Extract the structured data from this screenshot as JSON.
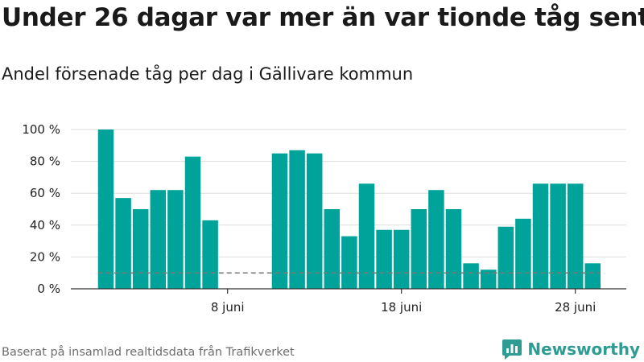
{
  "header": {
    "title": "Under 26 dagar var mer än var tionde tåg sent",
    "subtitle": "Andel försenade tåg per dag i Gällivare kommun"
  },
  "footer": {
    "source": "Baserat på insamlad realtidsdata från Trafikverket",
    "brand": "Newsworthy"
  },
  "colors": {
    "bar": "#00a39a",
    "reference_line": "#777777",
    "grid": "#dddddd",
    "brand": "#2e9c93"
  },
  "chart_data": {
    "type": "bar",
    "title": "",
    "xlabel": "",
    "ylabel": "",
    "x": [
      "2025-06-01",
      "2025-06-02",
      "2025-06-03",
      "2025-06-04",
      "2025-06-05",
      "2025-06-06",
      "2025-06-07",
      "2025-06-08",
      "2025-06-09",
      "2025-06-10",
      "2025-06-11",
      "2025-06-12",
      "2025-06-13",
      "2025-06-14",
      "2025-06-15",
      "2025-06-16",
      "2025-06-17",
      "2025-06-18",
      "2025-06-19",
      "2025-06-20",
      "2025-06-21",
      "2025-06-22",
      "2025-06-23",
      "2025-06-24",
      "2025-06-25",
      "2025-06-26",
      "2025-06-27",
      "2025-06-28",
      "2025-06-29"
    ],
    "values": [
      100,
      57,
      50,
      62,
      62,
      83,
      43,
      null,
      null,
      null,
      85,
      87,
      85,
      50,
      33,
      66,
      37,
      37,
      50,
      62,
      50,
      16,
      12,
      39,
      44,
      66,
      66,
      66,
      16
    ],
    "ylim": [
      0,
      100
    ],
    "yticks": [
      0,
      20,
      40,
      60,
      80,
      100
    ],
    "ytick_labels": [
      "0 %",
      "20 %",
      "40 %",
      "60 %",
      "80 %",
      "100 %"
    ],
    "xticks": [
      {
        "x": "2025-06-08",
        "label": "8 juni"
      },
      {
        "x": "2025-06-18",
        "label": "18 juni"
      },
      {
        "x": "2025-06-28",
        "label": "28 juni"
      }
    ],
    "reference_line": {
      "y": 10,
      "style": "dashed"
    },
    "grid": true,
    "legend": "none"
  }
}
